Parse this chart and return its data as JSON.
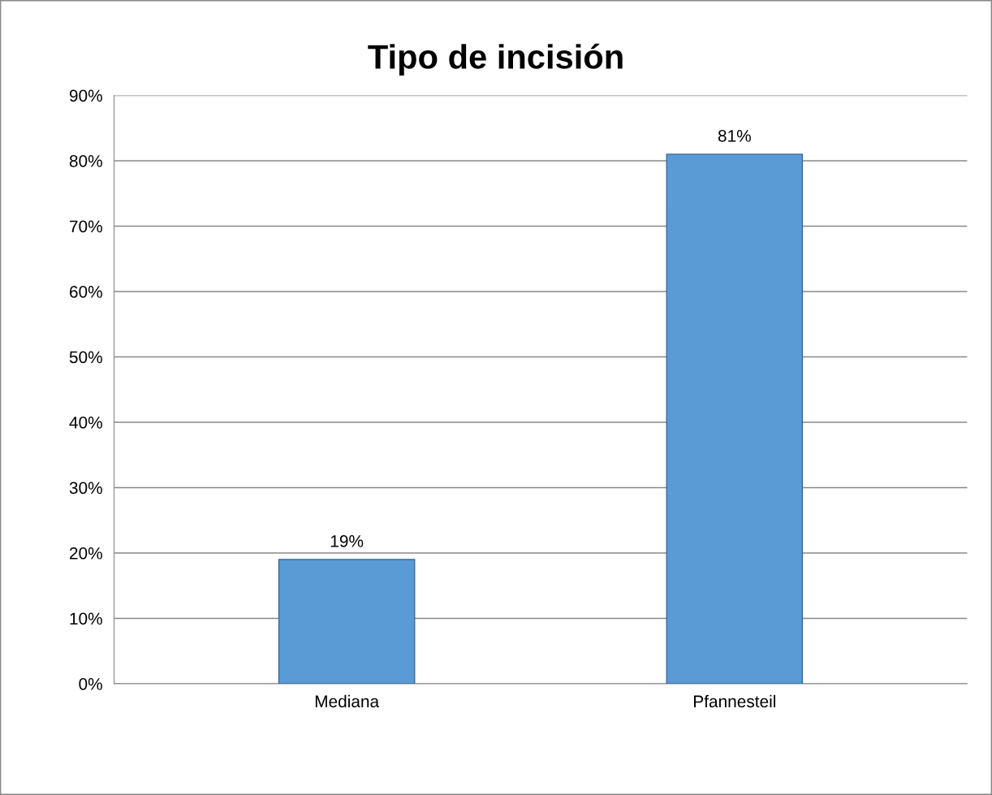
{
  "chart_data": {
    "type": "bar",
    "title": "Tipo de incisión",
    "categories": [
      "Mediana",
      "Pfannesteil"
    ],
    "values": [
      19,
      81
    ],
    "color": "#5b9bd5",
    "value_labels": [
      "19%",
      "81%"
    ],
    "ylim": [
      0,
      90
    ],
    "yticks": [
      {
        "value": 0,
        "label": "0%"
      },
      {
        "value": 10,
        "label": "10%"
      },
      {
        "value": 20,
        "label": "20%"
      },
      {
        "value": 30,
        "label": "30%"
      },
      {
        "value": 40,
        "label": "40%"
      },
      {
        "value": 50,
        "label": "50%"
      },
      {
        "value": 60,
        "label": "60%"
      },
      {
        "value": 70,
        "label": "70%"
      },
      {
        "value": 80,
        "label": "80%"
      },
      {
        "value": 90,
        "label": "90%"
      }
    ],
    "grid": "y",
    "legend": false
  }
}
